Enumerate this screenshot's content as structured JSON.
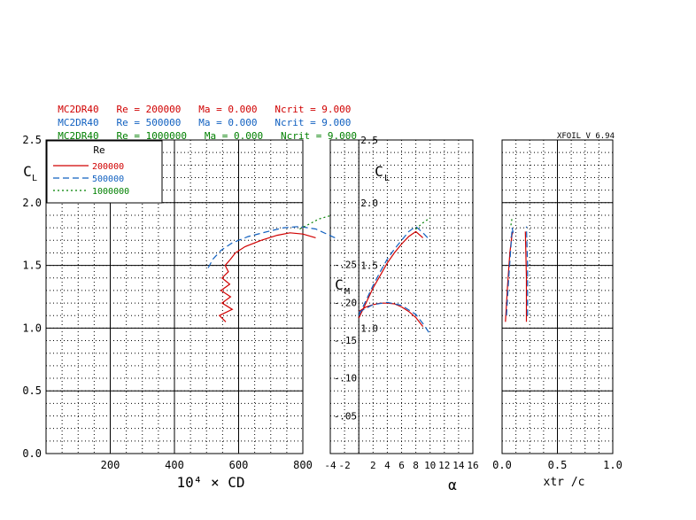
{
  "header": {
    "rows": [
      {
        "airfoil": "MC2DR40",
        "re": "Re = 200000",
        "ma": "Ma = 0.000",
        "ncrit": "Ncrit = 9.000",
        "color": "#d00000"
      },
      {
        "airfoil": "MC2DR40",
        "re": "Re = 500000",
        "ma": "Ma = 0.000",
        "ncrit": "Ncrit = 9.000",
        "color": "#1060c0"
      },
      {
        "airfoil": "MC2DR40",
        "re": "Re = 1000000",
        "ma": "Ma = 0.000",
        "ncrit": "Ncrit = 9.000",
        "color": "#008000"
      }
    ],
    "version": "XFOIL V 6.94"
  },
  "chart_data": [
    {
      "type": "line",
      "panel": "drag-polar",
      "xlabel": "10⁴ × CD",
      "ylabel": "CL",
      "xlim": [
        0,
        800
      ],
      "ylim": [
        0,
        2.5
      ],
      "xticks": [
        200,
        400,
        600,
        800
      ],
      "yticks": [
        0.0,
        0.5,
        1.0,
        1.5,
        2.0,
        2.5
      ],
      "legend": {
        "title": "Re",
        "entries": [
          "200000",
          "500000",
          "1000000"
        ],
        "placement": "top-left"
      },
      "series": [
        {
          "name": "200000",
          "color": "#d00000",
          "dash": "solid",
          "points": [
            [
              560,
              1.05
            ],
            [
              540,
              1.1
            ],
            [
              580,
              1.15
            ],
            [
              548,
              1.2
            ],
            [
              575,
              1.25
            ],
            [
              545,
              1.3
            ],
            [
              572,
              1.35
            ],
            [
              548,
              1.4
            ],
            [
              568,
              1.45
            ],
            [
              558,
              1.5
            ],
            [
              575,
              1.55
            ],
            [
              590,
              1.6
            ],
            [
              620,
              1.65
            ],
            [
              670,
              1.7
            ],
            [
              720,
              1.74
            ],
            [
              760,
              1.76
            ],
            [
              800,
              1.75
            ],
            [
              840,
              1.72
            ]
          ]
        },
        {
          "name": "500000",
          "color": "#1060c0",
          "dash": "dashed",
          "points": [
            [
              505,
              1.48
            ],
            [
              520,
              1.55
            ],
            [
              545,
              1.62
            ],
            [
              580,
              1.68
            ],
            [
              630,
              1.73
            ],
            [
              690,
              1.77
            ],
            [
              740,
              1.8
            ],
            [
              790,
              1.81
            ],
            [
              840,
              1.79
            ],
            [
              900,
              1.72
            ]
          ]
        },
        {
          "name": "1000000",
          "color": "#008000",
          "dash": "dotted",
          "points": [
            [
              790,
              1.79
            ],
            [
              820,
              1.83
            ],
            [
              850,
              1.87
            ],
            [
              890,
              1.9
            ]
          ]
        }
      ]
    },
    {
      "type": "line",
      "panel": "lift-and-moment-vs-alpha",
      "xlabel": "α",
      "ylabel": "CL",
      "y2label": "CM",
      "xlim": [
        -4,
        16
      ],
      "ylim": [
        0,
        2.5
      ],
      "xticks": [
        -4,
        -2,
        2,
        4,
        6,
        8,
        10,
        12,
        14,
        16
      ],
      "yticks": [
        1.0,
        1.5,
        2.0,
        2.5
      ],
      "cm_ticks": [
        0.05,
        0.1,
        0.15,
        0.2,
        0.25
      ],
      "series": [
        {
          "name": "200000",
          "color": "#d00000",
          "dash": "solid",
          "quantity": "CL",
          "points": [
            [
              0,
              1.08
            ],
            [
              1,
              1.2
            ],
            [
              2,
              1.32
            ],
            [
              3,
              1.42
            ],
            [
              4,
              1.52
            ],
            [
              5,
              1.6
            ],
            [
              6,
              1.67
            ],
            [
              7,
              1.73
            ],
            [
              8,
              1.77
            ],
            [
              9,
              1.72
            ]
          ]
        },
        {
          "name": "500000",
          "color": "#1060c0",
          "dash": "dashed",
          "quantity": "CL",
          "points": [
            [
              0,
              1.1
            ],
            [
              1,
              1.22
            ],
            [
              2,
              1.34
            ],
            [
              3,
              1.45
            ],
            [
              4,
              1.55
            ],
            [
              5,
              1.63
            ],
            [
              6,
              1.7
            ],
            [
              7,
              1.77
            ],
            [
              8,
              1.81
            ],
            [
              9,
              1.76
            ],
            [
              10,
              1.7
            ]
          ]
        },
        {
          "name": "1000000",
          "color": "#008000",
          "dash": "dotted",
          "quantity": "CL",
          "points": [
            [
              8,
              1.79
            ],
            [
              9,
              1.84
            ],
            [
              10,
              1.88
            ]
          ]
        },
        {
          "name": "200000",
          "color": "#d00000",
          "dash": "solid",
          "quantity": "CM",
          "points": [
            [
              0,
              0.188
            ],
            [
              1,
              0.194
            ],
            [
              2,
              0.197
            ],
            [
              3,
              0.199
            ],
            [
              4,
              0.199
            ],
            [
              5,
              0.198
            ],
            [
              6,
              0.194
            ],
            [
              7,
              0.188
            ],
            [
              8,
              0.18
            ],
            [
              9,
              0.168
            ]
          ]
        },
        {
          "name": "500000",
          "color": "#1060c0",
          "dash": "dashed",
          "quantity": "CM",
          "points": [
            [
              0,
              0.187
            ],
            [
              2,
              0.197
            ],
            [
              4,
              0.2
            ],
            [
              6,
              0.196
            ],
            [
              8,
              0.184
            ],
            [
              9,
              0.172
            ],
            [
              10,
              0.158
            ]
          ]
        }
      ]
    },
    {
      "type": "line",
      "panel": "transition-location",
      "xlabel": "xtr /c",
      "ylabel": "",
      "xlim": [
        0,
        1.0
      ],
      "ylim": [
        0,
        2.5
      ],
      "xticks": [
        0.0,
        0.5,
        1.0
      ],
      "series": [
        {
          "name": "200000",
          "color": "#d00000",
          "dash": "solid",
          "points": [
            [
              0.03,
              1.05
            ],
            [
              0.05,
              1.35
            ],
            [
              0.07,
              1.6
            ],
            [
              0.09,
              1.75
            ],
            [
              0.1,
              1.77
            ],
            [
              0.08,
              1.72
            ]
          ]
        },
        {
          "name": "200000",
          "color": "#d00000",
          "dash": "solid",
          "points": [
            [
              0.22,
              1.05
            ],
            [
              0.22,
              1.4
            ],
            [
              0.21,
              1.77
            ]
          ]
        },
        {
          "name": "500000",
          "color": "#1060c0",
          "dash": "dashed",
          "points": [
            [
              0.04,
              1.1
            ],
            [
              0.06,
              1.4
            ],
            [
              0.08,
              1.65
            ],
            [
              0.09,
              1.8
            ],
            [
              0.1,
              1.76
            ]
          ]
        },
        {
          "name": "500000",
          "color": "#1060c0",
          "dash": "dashed",
          "points": [
            [
              0.23,
              1.1
            ],
            [
              0.23,
              1.5
            ],
            [
              0.22,
              1.81
            ]
          ]
        },
        {
          "name": "1000000",
          "color": "#008000",
          "dash": "dotted",
          "points": [
            [
              0.08,
              1.82
            ],
            [
              0.09,
              1.88
            ]
          ]
        }
      ]
    }
  ]
}
